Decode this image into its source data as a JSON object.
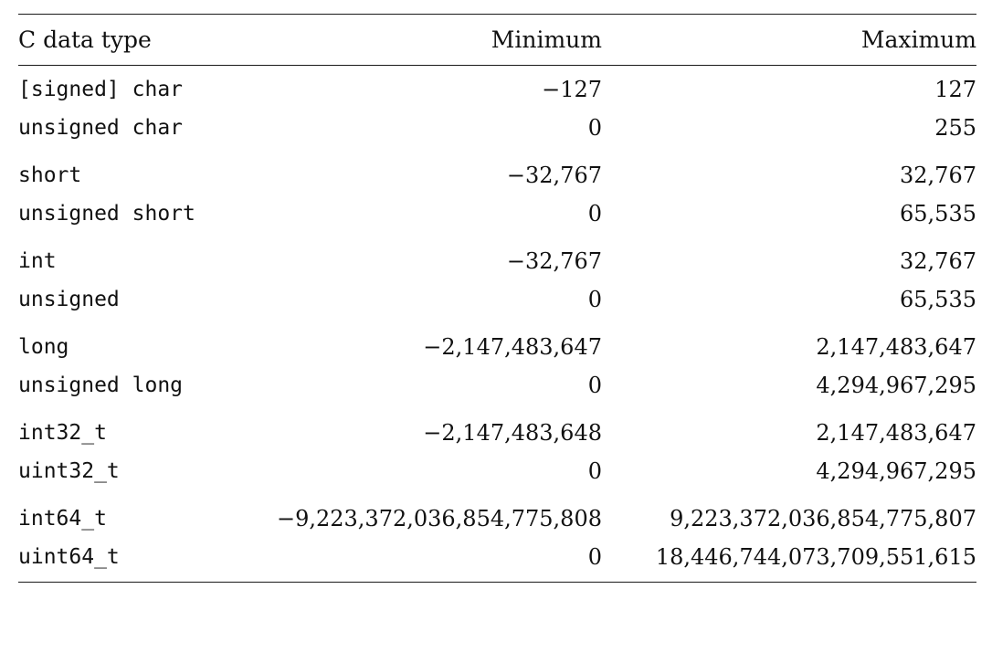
{
  "table": {
    "headers": {
      "type": "C data type",
      "min": "Minimum",
      "max": "Maximum"
    },
    "rows": [
      {
        "type": "[signed] char",
        "min": "−127",
        "max": "127"
      },
      {
        "type": "unsigned char",
        "min": "0",
        "max": "255"
      },
      {
        "type": "short",
        "min": "−32,767",
        "max": "32,767"
      },
      {
        "type": "unsigned short",
        "min": "0",
        "max": "65,535"
      },
      {
        "type": "int",
        "min": "−32,767",
        "max": "32,767"
      },
      {
        "type": "unsigned",
        "min": "0",
        "max": "65,535"
      },
      {
        "type": "long",
        "min": "−2,147,483,647",
        "max": "2,147,483,647"
      },
      {
        "type": "unsigned long",
        "min": "0",
        "max": "4,294,967,295"
      },
      {
        "type": "int32_t",
        "min": "−2,147,483,648",
        "max": "2,147,483,647"
      },
      {
        "type": "uint32_t",
        "min": "0",
        "max": "4,294,967,295"
      },
      {
        "type": "int64_t",
        "min": "−9,223,372,036,854,775,808",
        "max": "9,223,372,036,854,775,807"
      },
      {
        "type": "uint64_t",
        "min": "0",
        "max": "18,446,744,073,709,551,615"
      }
    ]
  }
}
